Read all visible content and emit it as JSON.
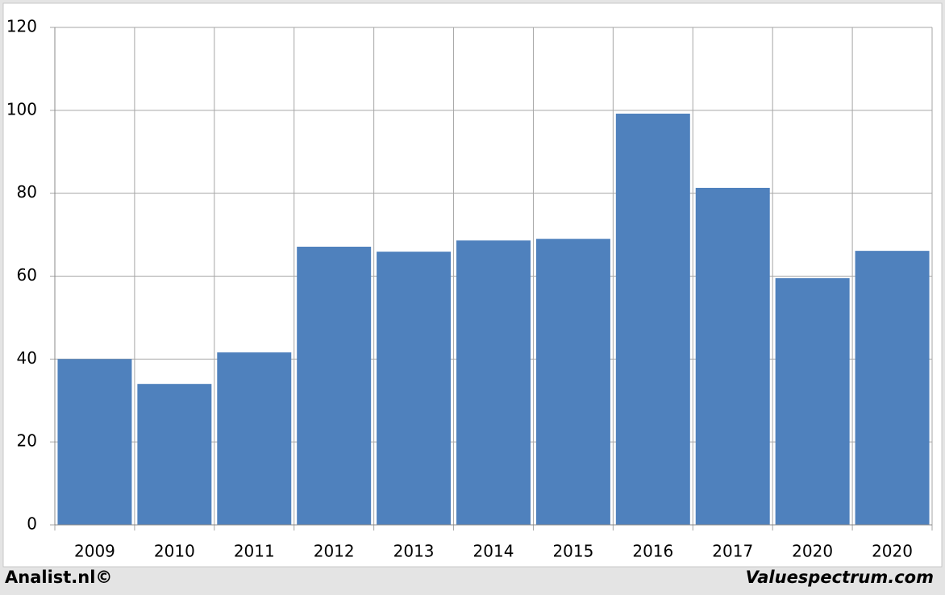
{
  "chart_data": {
    "type": "bar",
    "categories": [
      "2009",
      "2010",
      "2011",
      "2012",
      "2013",
      "2014",
      "2015",
      "2016",
      "2017",
      "2020",
      "2020"
    ],
    "values": [
      40,
      34,
      41.6,
      67.1,
      65.9,
      68.6,
      69,
      99.2,
      81.3,
      59.5,
      66.1
    ],
    "color": "#4f81bd",
    "ylim": [
      0,
      120
    ],
    "yticks": [
      0,
      20,
      40,
      60,
      80,
      100,
      120
    ],
    "grid": true,
    "footer_left": "Analist.nl©",
    "footer_right": "Valuespectrum.com"
  }
}
